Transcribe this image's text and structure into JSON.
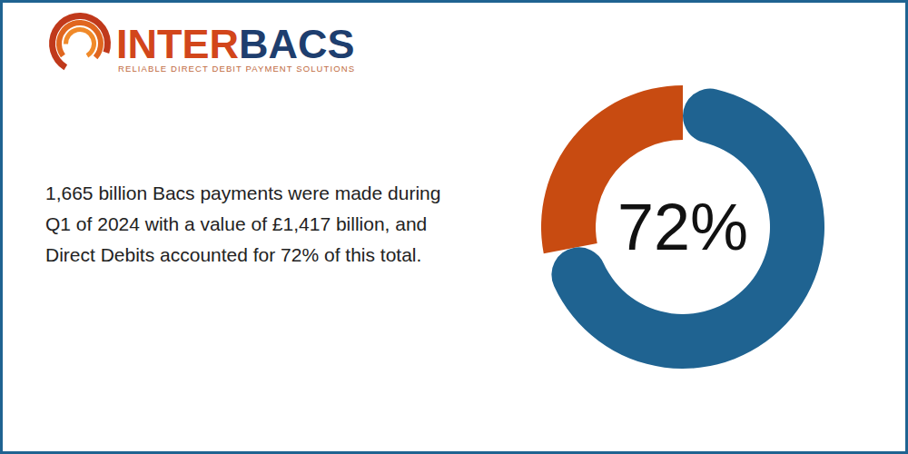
{
  "header": {
    "logo_text": [
      "INTER",
      "BACS"
    ],
    "tagline": "RELIABLE DIRECT DEBIT PAYMENT SOLUTIONS"
  },
  "chart_data": {
    "type": "pie",
    "annotations": [
      "1,665 billion Bacs payments were made during",
      "Q1 of 2024 with a value of £1,417 billion, and",
      "Direct Debits accounted for 72% of this total."
    ],
    "values": [
      72,
      28
    ],
    "colors": [
      "#1f6391",
      "#c84b11"
    ],
    "data_labels": true,
    "value_labels": [
      "72%",
      null
    ]
  }
}
